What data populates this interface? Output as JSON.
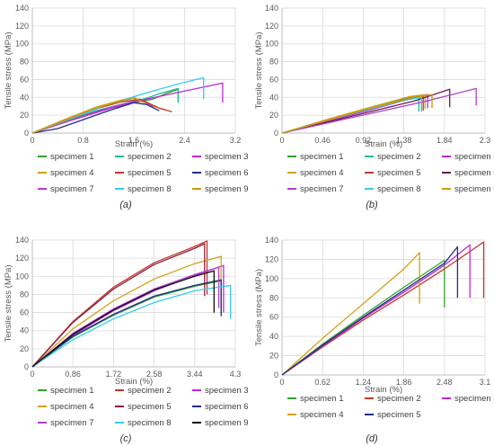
{
  "chart_data": [
    {
      "id": "a",
      "type": "line",
      "caption": "(a)",
      "xlabel": "Strain (%)",
      "ylabel": "Tensile stress (MPa)",
      "xlim": [
        0,
        3.2
      ],
      "ylim": [
        0,
        140
      ],
      "xticks": [
        "0",
        "0.8",
        "1.6",
        "2.4",
        "3.2"
      ],
      "yticks": [
        "0",
        "20",
        "40",
        "60",
        "80",
        "100",
        "120",
        "140"
      ],
      "grid": true,
      "legend": {
        "placement": "bottom",
        "columns": 3
      },
      "series": [
        {
          "name": "specimen 1",
          "color": "#33a02c",
          "x": [
            0,
            0.5,
            1.0,
            1.5,
            1.9,
            2.1,
            2.3,
            2.3
          ],
          "y": [
            0,
            12,
            24,
            33,
            38,
            44,
            49,
            35
          ]
        },
        {
          "name": "specimen 2",
          "color": "#1abc9c",
          "x": [
            0,
            0.5,
            1.0,
            1.5,
            1.8,
            2.0,
            2.3,
            2.3
          ],
          "y": [
            0,
            13,
            25,
            34,
            39,
            44,
            50,
            34
          ]
        },
        {
          "name": "specimen 3",
          "color": "#c026d3",
          "x": [
            0,
            0.6,
            1.2,
            1.8,
            2.4,
            2.8,
            3.0,
            3.0
          ],
          "y": [
            0,
            14,
            27,
            38,
            47,
            53,
            56,
            34
          ]
        },
        {
          "name": "specimen 4",
          "color": "#d4a017",
          "x": [
            0,
            0.5,
            1.0,
            1.4,
            1.6,
            1.9,
            2.1
          ],
          "y": [
            0,
            15,
            29,
            37,
            40,
            30,
            26
          ]
        },
        {
          "name": "specimen 5",
          "color": "#c0392b",
          "x": [
            0,
            0.5,
            1.0,
            1.4,
            1.7,
            2.0,
            2.2
          ],
          "y": [
            0,
            14,
            27,
            35,
            38,
            28,
            24
          ]
        },
        {
          "name": "specimen 6",
          "color": "#1f2d8a",
          "x": [
            0,
            0.4,
            0.8,
            1.2,
            1.6,
            1.8,
            2.0
          ],
          "y": [
            0,
            5,
            15,
            25,
            34,
            32,
            25
          ]
        },
        {
          "name": "specimen 7",
          "color": "#b23cc9",
          "x": [
            0,
            0.5,
            1.0,
            1.4,
            1.7,
            1.9
          ],
          "y": [
            0,
            12,
            24,
            32,
            37,
            30
          ]
        },
        {
          "name": "specimen 8",
          "color": "#33ccee",
          "x": [
            0,
            0.6,
            1.2,
            1.8,
            2.3,
            2.7,
            2.7
          ],
          "y": [
            0,
            16,
            32,
            45,
            55,
            62,
            38
          ]
        },
        {
          "name": "specimen 9",
          "color": "#cc9a06",
          "x": [
            0,
            0.5,
            1.0,
            1.4,
            1.6,
            1.8
          ],
          "y": [
            0,
            14,
            28,
            36,
            39,
            33
          ]
        }
      ]
    },
    {
      "id": "b",
      "type": "line",
      "caption": "(b)",
      "xlabel": "Strain (%)",
      "ylabel": "Tensile stress (MPa)",
      "xlim": [
        0,
        2.3
      ],
      "ylim": [
        0,
        140
      ],
      "xticks": [
        "0",
        "0.46",
        "0.92",
        "1.38",
        "1.84",
        "2.3"
      ],
      "yticks": [
        "0",
        "20",
        "40",
        "60",
        "80",
        "100",
        "120",
        "140"
      ],
      "grid": true,
      "legend": {
        "placement": "bottom",
        "columns": 3
      },
      "series": [
        {
          "name": "specimen 1",
          "color": "#33a02c",
          "x": [
            0,
            0.5,
            1.0,
            1.45,
            1.58,
            1.58
          ],
          "y": [
            0,
            14,
            28,
            40,
            42,
            26
          ]
        },
        {
          "name": "specimen 2",
          "color": "#1abc9c",
          "x": [
            0,
            0.5,
            1.0,
            1.45,
            1.55,
            1.55
          ],
          "y": [
            0,
            14,
            28,
            40,
            42,
            24
          ]
        },
        {
          "name": "specimen 3",
          "color": "#c026d3",
          "x": [
            0,
            0.5,
            1.0,
            1.4,
            1.65,
            1.65
          ],
          "y": [
            0,
            13,
            26,
            37,
            43,
            28
          ]
        },
        {
          "name": "specimen 4",
          "color": "#d4a017",
          "x": [
            0,
            0.5,
            1.0,
            1.45,
            1.62,
            1.62
          ],
          "y": [
            0,
            15,
            29,
            41,
            43,
            27
          ]
        },
        {
          "name": "specimen 5",
          "color": "#c0392b",
          "x": [
            0,
            0.5,
            1.0,
            1.4,
            1.6,
            1.6
          ],
          "y": [
            0,
            14,
            27,
            38,
            41,
            25
          ]
        },
        {
          "name": "specimen 6",
          "color": "#6a1b4d",
          "x": [
            0,
            0.5,
            1.0,
            1.5,
            1.9,
            1.9
          ],
          "y": [
            0,
            12,
            24,
            36,
            49,
            29
          ]
        },
        {
          "name": "specimen 7",
          "color": "#b23cc9",
          "x": [
            0,
            0.5,
            1.0,
            1.6,
            2.2,
            2.2
          ],
          "y": [
            0,
            11,
            22,
            35,
            50,
            31
          ]
        },
        {
          "name": "specimen 8",
          "color": "#33ccee",
          "x": [
            0,
            0.5,
            1.0,
            1.4,
            1.58,
            1.58
          ],
          "y": [
            0,
            14,
            27,
            37,
            40,
            24
          ]
        },
        {
          "name": "specimen 9",
          "color": "#cc9a06",
          "x": [
            0,
            0.5,
            1.0,
            1.5,
            1.7,
            1.7
          ],
          "y": [
            0,
            14,
            28,
            40,
            43,
            28
          ]
        }
      ]
    },
    {
      "id": "c",
      "type": "line",
      "caption": "(c)",
      "xlabel": "Strain (%)",
      "ylabel": "Tensile stress (MPa)",
      "xlim": [
        0,
        4.3
      ],
      "ylim": [
        0,
        140
      ],
      "xticks": [
        "0",
        "0.86",
        "1.72",
        "2.58",
        "3.44",
        "4.3"
      ],
      "yticks": [
        "0",
        "20",
        "40",
        "60",
        "80",
        "100",
        "120",
        "140"
      ],
      "grid": true,
      "legend": {
        "placement": "bottom",
        "columns": 3
      },
      "series": [
        {
          "name": "specimen 1",
          "color": "#33a02c",
          "x": [
            0,
            0.86,
            1.72,
            2.58,
            3.44,
            4.0,
            4.0
          ],
          "y": [
            0,
            33,
            57,
            77,
            89,
            95,
            58
          ]
        },
        {
          "name": "specimen 2",
          "color": "#c0392b",
          "x": [
            0,
            0.86,
            1.72,
            2.58,
            3.44,
            3.7,
            3.7
          ],
          "y": [
            0,
            50,
            88,
            115,
            133,
            139,
            80
          ]
        },
        {
          "name": "specimen 3",
          "color": "#c026d3",
          "x": [
            0,
            0.86,
            1.72,
            2.58,
            3.44,
            4.05,
            4.05
          ],
          "y": [
            0,
            35,
            62,
            84,
            101,
            112,
            60
          ]
        },
        {
          "name": "specimen 4",
          "color": "#d4a017",
          "x": [
            0,
            0.86,
            1.72,
            2.58,
            3.44,
            4.0,
            4.0
          ],
          "y": [
            0,
            42,
            73,
            97,
            114,
            122,
            63
          ]
        },
        {
          "name": "specimen 5",
          "color": "#8b1e3f",
          "x": [
            0,
            0.86,
            1.72,
            2.58,
            3.44,
            3.65,
            3.65
          ],
          "y": [
            0,
            49,
            86,
            113,
            131,
            136,
            78
          ]
        },
        {
          "name": "specimen 6",
          "color": "#1f2d8a",
          "x": [
            0,
            0.86,
            1.72,
            2.58,
            3.44,
            4.0,
            4.0
          ],
          "y": [
            0,
            34,
            58,
            78,
            90,
            96,
            56
          ]
        },
        {
          "name": "specimen 7",
          "color": "#b23cc9",
          "x": [
            0,
            0.86,
            1.72,
            2.58,
            3.44,
            3.95,
            3.95
          ],
          "y": [
            0,
            37,
            64,
            86,
            102,
            110,
            65
          ]
        },
        {
          "name": "specimen 8",
          "color": "#33ccee",
          "x": [
            0,
            0.86,
            1.72,
            2.58,
            3.44,
            4.2,
            4.2
          ],
          "y": [
            0,
            30,
            53,
            71,
            84,
            90,
            53
          ]
        },
        {
          "name": "specimen 9",
          "color": "#111111",
          "x": [
            0,
            0.86,
            1.72,
            2.58,
            3.44,
            3.85,
            3.85
          ],
          "y": [
            0,
            36,
            63,
            85,
            100,
            106,
            60
          ]
        }
      ]
    },
    {
      "id": "d",
      "type": "line",
      "caption": "(d)",
      "xlabel": "Strain (%)",
      "ylabel": "Tensile stress (MPa)",
      "xlim": [
        0,
        3.1
      ],
      "ylim": [
        0,
        140
      ],
      "xticks": [
        "0",
        "0.62",
        "1.24",
        "1.86",
        "2.48",
        "3.1"
      ],
      "yticks": [
        "0",
        "20",
        "40",
        "60",
        "80",
        "100",
        "120",
        "140"
      ],
      "grid": true,
      "legend": {
        "placement": "bottom",
        "columns": 3
      },
      "series": [
        {
          "name": "specimen 1",
          "color": "#33a02c",
          "x": [
            0,
            0.62,
            1.24,
            1.86,
            2.48,
            2.48
          ],
          "y": [
            0,
            32,
            62,
            91,
            119,
            70
          ]
        },
        {
          "name": "specimen 2",
          "color": "#c0392b",
          "x": [
            0,
            0.62,
            1.24,
            1.86,
            2.48,
            3.08,
            3.08
          ],
          "y": [
            0,
            29,
            57,
            83,
            110,
            138,
            80
          ]
        },
        {
          "name": "specimen 3",
          "color": "#c026d3",
          "x": [
            0,
            0.62,
            1.24,
            1.86,
            2.48,
            2.87,
            2.87
          ],
          "y": [
            0,
            30,
            59,
            86,
            114,
            135,
            80
          ]
        },
        {
          "name": "specimen 4",
          "color": "#d4a017",
          "x": [
            0,
            0.62,
            1.24,
            1.86,
            2.1,
            2.1
          ],
          "y": [
            0,
            38,
            74,
            110,
            127,
            74
          ]
        },
        {
          "name": "specimen 5",
          "color": "#1f2d8a",
          "x": [
            0,
            0.62,
            1.24,
            1.86,
            2.48,
            2.68,
            2.68
          ],
          "y": [
            0,
            31,
            60,
            88,
            116,
            133,
            80
          ]
        }
      ]
    }
  ]
}
